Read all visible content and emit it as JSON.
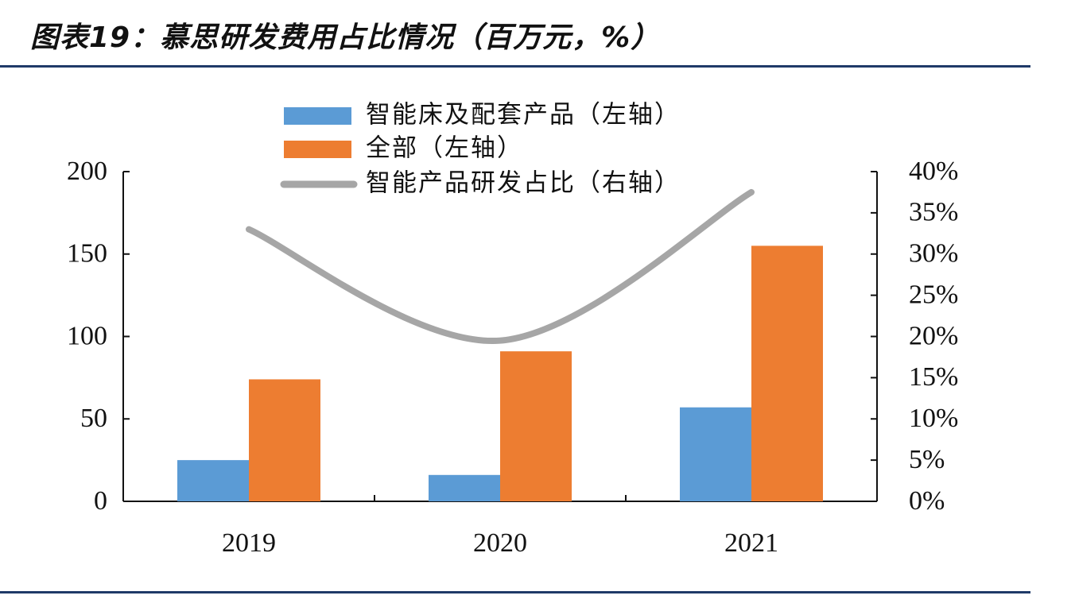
{
  "title": "图表19：慕思研发费用占比情况（百万元，%）",
  "colors": {
    "series_smart": "#5b9bd5",
    "series_total": "#ed7d31",
    "line_ratio": "#a6a6a6",
    "axis": "#111111",
    "rule": "#1f3a68"
  },
  "chart_data": {
    "type": "bar",
    "categories": [
      "2019",
      "2020",
      "2021"
    ],
    "series": [
      {
        "name": "智能床及配套产品（左轴）",
        "type": "bar",
        "axis": "left",
        "values": [
          25,
          16,
          57
        ]
      },
      {
        "name": "全部（左轴）",
        "type": "bar",
        "axis": "left",
        "values": [
          74,
          91,
          155
        ]
      },
      {
        "name": "智能产品研发占比（右轴）",
        "type": "line",
        "axis": "right",
        "smooth": true,
        "values": [
          0.33,
          0.195,
          0.375
        ]
      }
    ],
    "ylim_left": [
      0,
      200
    ],
    "yticks_left": [
      "0",
      "50",
      "100",
      "150",
      "200"
    ],
    "ylim_right": [
      0,
      0.4
    ],
    "yticks_right": [
      "0%",
      "5%",
      "10%",
      "15%",
      "20%",
      "25%",
      "30%",
      "35%",
      "40%"
    ],
    "legend_position": "top-center",
    "grid": false
  }
}
